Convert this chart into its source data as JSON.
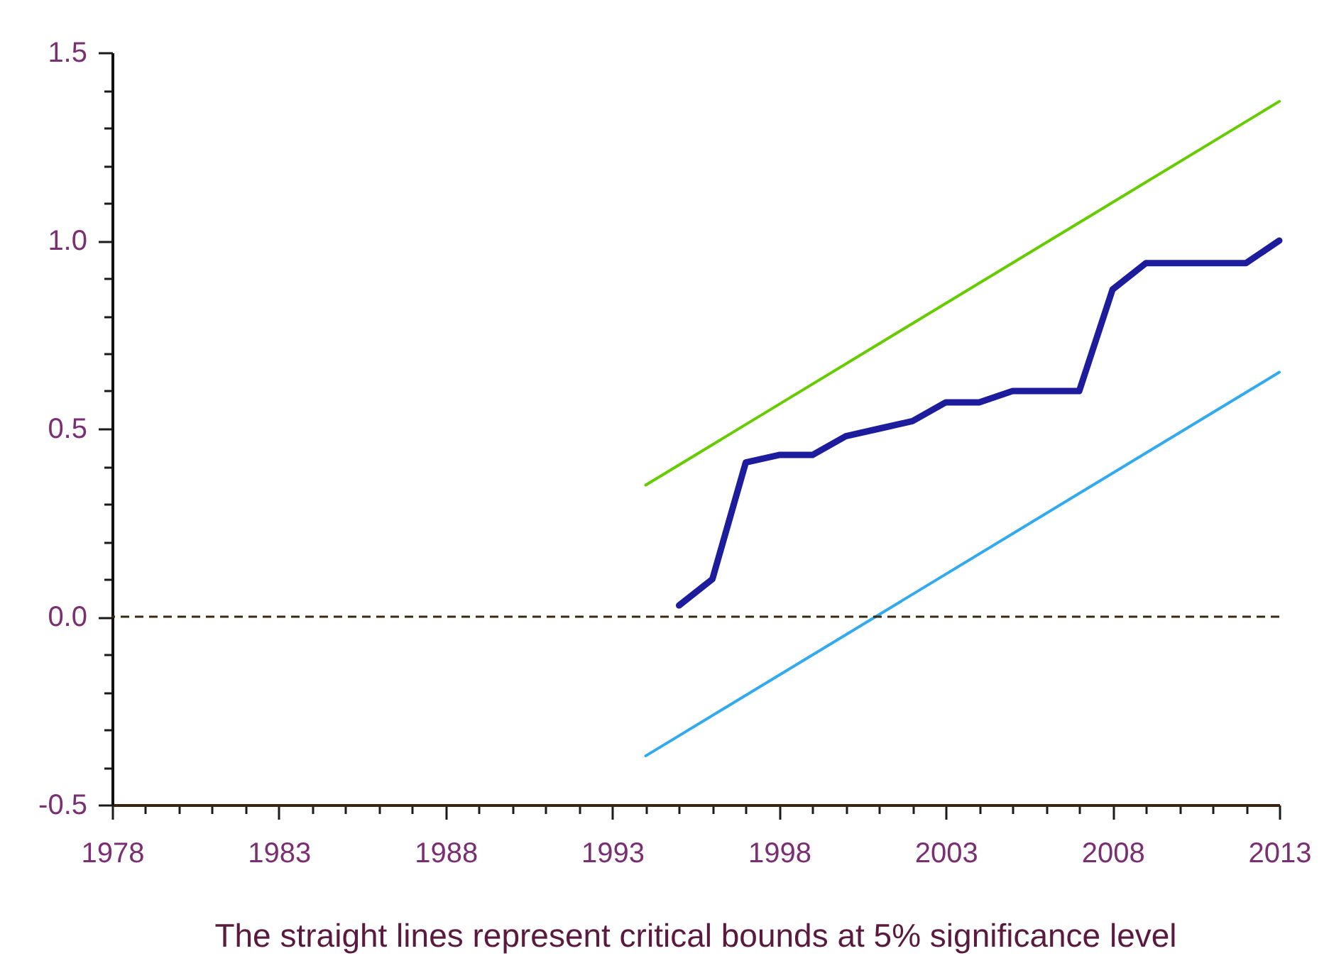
{
  "chart_data": {
    "type": "line",
    "annotations": [
      "The straight lines represent critical bounds at 5% significance level"
    ],
    "xlim": [
      1978,
      2013
    ],
    "xticks": [
      1978,
      {
        "value": 1979,
        "label": null
      },
      {
        "value": 1980,
        "label": null
      },
      {
        "value": 1981,
        "label": null
      },
      {
        "value": 1982,
        "label": null
      },
      1983,
      {
        "value": 1984,
        "label": null
      },
      {
        "value": 1985,
        "label": null
      },
      {
        "value": 1986,
        "label": null
      },
      {
        "value": 1987,
        "label": null
      },
      1988,
      {
        "value": 1989,
        "label": null
      },
      {
        "value": 1990,
        "label": null
      },
      {
        "value": 1991,
        "label": null
      },
      {
        "value": 1992,
        "label": null
      },
      1993,
      {
        "value": 1994,
        "label": null
      },
      {
        "value": 1995,
        "label": null
      },
      {
        "value": 1996,
        "label": null
      },
      {
        "value": 1997,
        "label": null
      },
      1998,
      {
        "value": 1999,
        "label": null
      },
      {
        "value": 2000,
        "label": null
      },
      {
        "value": 2001,
        "label": null
      },
      {
        "value": 2002,
        "label": null
      },
      2003,
      {
        "value": 2004,
        "label": null
      },
      {
        "value": 2005,
        "label": null
      },
      {
        "value": 2006,
        "label": null
      },
      {
        "value": 2007,
        "label": null
      },
      2008,
      {
        "value": 2009,
        "label": null
      },
      {
        "value": 2010,
        "label": null
      },
      {
        "value": 2011,
        "label": null
      },
      {
        "value": 2012,
        "label": null
      },
      2013
    ],
    "ylim": [
      -0.5,
      1.5
    ],
    "yticks": [
      -0.5,
      {
        "value": -0.4,
        "label": null
      },
      {
        "value": -0.3,
        "label": null
      },
      {
        "value": -0.2,
        "label": null
      },
      {
        "value": -0.1,
        "label": null
      },
      {
        "value": 0,
        "label": "0.0"
      },
      {
        "value": 0.1,
        "label": null
      },
      {
        "value": 0.2,
        "label": null
      },
      {
        "value": 0.3,
        "label": null
      },
      {
        "value": 0.4,
        "label": null
      },
      0.5,
      {
        "value": 0.6,
        "label": null
      },
      {
        "value": 0.7,
        "label": null
      },
      {
        "value": 0.8,
        "label": null
      },
      {
        "value": 0.9,
        "label": null
      },
      {
        "value": 1,
        "label": "1.0"
      },
      {
        "value": 1.1,
        "label": null
      },
      {
        "value": 1.2,
        "label": null
      },
      {
        "value": 1.3,
        "label": null
      },
      {
        "value": 1.4,
        "label": null
      },
      1.5
    ],
    "grid": false,
    "series": [
      {
        "color": "#1c1c9c",
        "x": [
          1995,
          1996,
          1997,
          1998,
          1999,
          2000,
          2001,
          2002,
          2003,
          2004,
          2005,
          2006,
          2007,
          2008,
          2009,
          2010,
          2011,
          2012,
          2013
        ],
        "values": [
          0.03,
          0.1,
          0.41,
          0.43,
          0.43,
          0.48,
          0.5,
          0.52,
          0.57,
          0.57,
          0.6,
          0.6,
          0.6,
          0.87,
          0.94,
          0.94,
          0.94,
          0.94,
          1.0
        ]
      },
      {
        "color": "#66cc00",
        "x": [
          1994,
          2013
        ],
        "values": [
          0.35,
          1.37
        ]
      },
      {
        "color": "#33aaee",
        "x": [
          1994,
          2013
        ],
        "values": [
          -0.37,
          0.65
        ]
      }
    ],
    "ref_lines": [
      {
        "axis": "y",
        "value": 0,
        "color": "#3a2a14",
        "line_style": "dashed"
      }
    ]
  }
}
